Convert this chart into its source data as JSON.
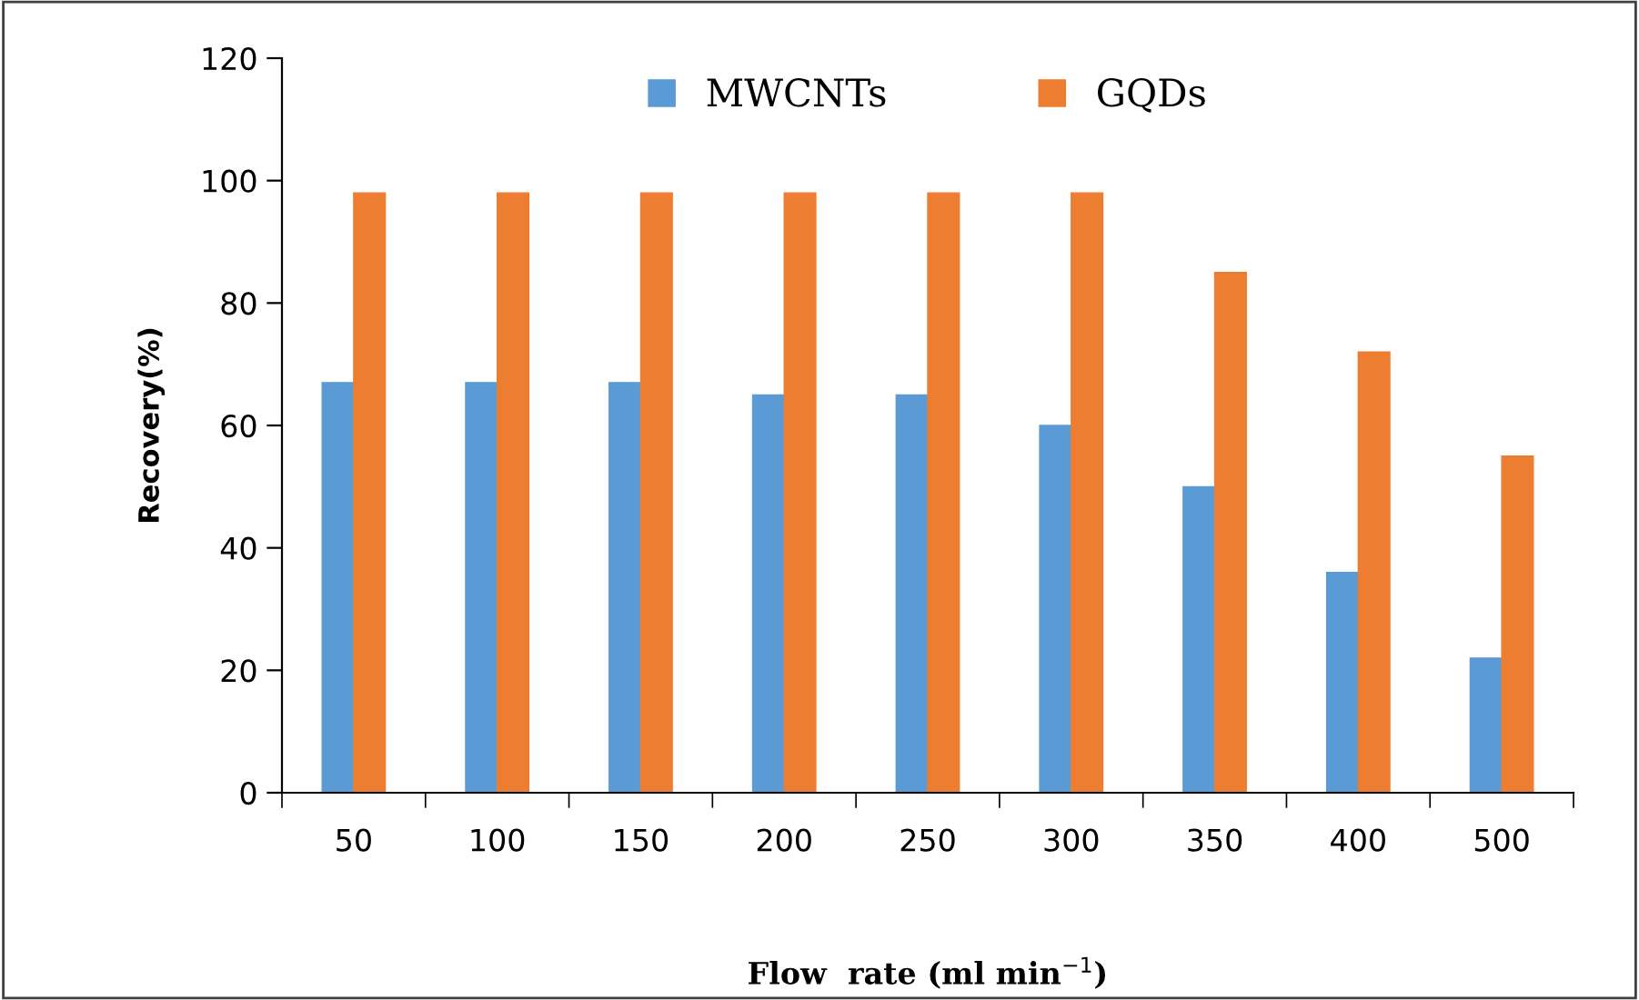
{
  "chart_data": {
    "type": "bar",
    "categories": [
      "50",
      "100",
      "150",
      "200",
      "250",
      "300",
      "350",
      "400",
      "500"
    ],
    "series": [
      {
        "name": "MWCNTs",
        "color": "#5b9bd5",
        "values": [
          67,
          67,
          67,
          65,
          65,
          60,
          50,
          36,
          22
        ]
      },
      {
        "name": "GQDs",
        "color": "#ed7d31",
        "values": [
          98,
          98,
          98,
          98,
          98,
          98,
          85,
          72,
          55
        ]
      }
    ],
    "xlabel": "Flow  rate (ml min$^{−1}$)",
    "ylabel": "Recovery(%)",
    "ylim": [
      0,
      120
    ],
    "yticks": [
      0,
      20,
      40,
      60,
      80,
      100,
      120
    ],
    "grid": false,
    "legend": "top"
  }
}
